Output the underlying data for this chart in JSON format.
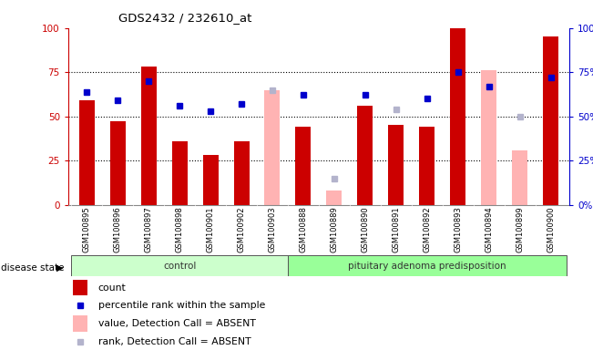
{
  "title": "GDS2432 / 232610_at",
  "samples": [
    "GSM100895",
    "GSM100896",
    "GSM100897",
    "GSM100898",
    "GSM100901",
    "GSM100902",
    "GSM100903",
    "GSM100888",
    "GSM100889",
    "GSM100890",
    "GSM100891",
    "GSM100892",
    "GSM100893",
    "GSM100894",
    "GSM100899",
    "GSM100900"
  ],
  "count": [
    59,
    47,
    78,
    36,
    28,
    36,
    null,
    44,
    null,
    56,
    45,
    44,
    100,
    null,
    null,
    95
  ],
  "percentile_rank": [
    64,
    59,
    70,
    56,
    53,
    57,
    null,
    62,
    null,
    62,
    null,
    60,
    75,
    67,
    null,
    72
  ],
  "absent_value": [
    null,
    null,
    null,
    null,
    null,
    null,
    65,
    null,
    8,
    null,
    null,
    null,
    null,
    76,
    31,
    null
  ],
  "absent_rank": [
    null,
    null,
    null,
    null,
    null,
    null,
    65,
    null,
    15,
    null,
    54,
    null,
    null,
    null,
    50,
    null
  ],
  "control_count": 7,
  "disease_count": 9,
  "control_label": "control",
  "disease_label": "pituitary adenoma predisposition",
  "disease_state_label": "disease state",
  "bar_width": 0.5,
  "ylim": [
    0,
    100
  ],
  "yticks": [
    0,
    25,
    50,
    75,
    100
  ],
  "left_axis_color": "#cc0000",
  "right_axis_color": "#0000cc",
  "bar_color": "#cc0000",
  "rank_color": "#0000cc",
  "absent_val_color": "#ffb3b3",
  "absent_rank_color": "#b3b3cc",
  "control_bg": "#ccffcc",
  "disease_bg": "#99ff99",
  "label_bg": "#d3d3d3"
}
